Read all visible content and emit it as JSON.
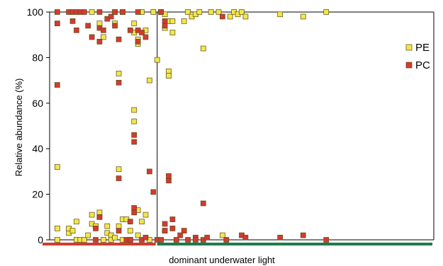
{
  "chart_data": {
    "type": "scatter",
    "title": "",
    "ylabel": "Relative abundance (%)",
    "xlabel": "dominant underwater light",
    "ylim": [
      0,
      100
    ],
    "yticks": [
      0,
      20,
      40,
      60,
      80,
      100
    ],
    "grid": false,
    "legend_position": "right",
    "x_divider": 0.28,
    "light_bands": [
      {
        "range": [
          0.0,
          0.28
        ],
        "color": "#d43a2f"
      },
      {
        "range": [
          0.28,
          1.0
        ],
        "color": "#1f7a4a"
      }
    ],
    "series": [
      {
        "name": "PE",
        "color": "#f2e64a",
        "points": [
          [
            0.02,
            32
          ],
          [
            0.02,
            5
          ],
          [
            0.02,
            0
          ],
          [
            0.05,
            3
          ],
          [
            0.05,
            5
          ],
          [
            0.06,
            4
          ],
          [
            0.07,
            8
          ],
          [
            0.07,
            0
          ],
          [
            0.08,
            0
          ],
          [
            0.09,
            0
          ],
          [
            0.1,
            2
          ],
          [
            0.11,
            7
          ],
          [
            0.11,
            11
          ],
          [
            0.11,
            100
          ],
          [
            0.12,
            6
          ],
          [
            0.13,
            12
          ],
          [
            0.13,
            10
          ],
          [
            0.13,
            95
          ],
          [
            0.14,
            89
          ],
          [
            0.14,
            0
          ],
          [
            0.15,
            6
          ],
          [
            0.15,
            3
          ],
          [
            0.16,
            2
          ],
          [
            0.16,
            0
          ],
          [
            0.17,
            1
          ],
          [
            0.17,
            95
          ],
          [
            0.18,
            31
          ],
          [
            0.18,
            73
          ],
          [
            0.18,
            6
          ],
          [
            0.19,
            9
          ],
          [
            0.19,
            0
          ],
          [
            0.19,
            100
          ],
          [
            0.2,
            9
          ],
          [
            0.21,
            0
          ],
          [
            0.21,
            4
          ],
          [
            0.22,
            52
          ],
          [
            0.22,
            57
          ],
          [
            0.22,
            95
          ],
          [
            0.22,
            91
          ],
          [
            0.23,
            2
          ],
          [
            0.23,
            13
          ],
          [
            0.23,
            86
          ],
          [
            0.23,
            88
          ],
          [
            0.24,
            100
          ],
          [
            0.24,
            8
          ],
          [
            0.25,
            11
          ],
          [
            0.25,
            92
          ],
          [
            0.26,
            0
          ],
          [
            0.26,
            70
          ],
          [
            0.27,
            100
          ],
          [
            0.28,
            79
          ],
          [
            0.29,
            100
          ],
          [
            0.29,
            100
          ],
          [
            0.3,
            99
          ],
          [
            0.3,
            4
          ],
          [
            0.3,
            93
          ],
          [
            0.31,
            74
          ],
          [
            0.31,
            72
          ],
          [
            0.31,
            96
          ],
          [
            0.32,
            91
          ],
          [
            0.32,
            96
          ],
          [
            0.35,
            96
          ],
          [
            0.36,
            100
          ],
          [
            0.37,
            98
          ],
          [
            0.38,
            99
          ],
          [
            0.39,
            100
          ],
          [
            0.4,
            84
          ],
          [
            0.42,
            100
          ],
          [
            0.44,
            100
          ],
          [
            0.45,
            2
          ],
          [
            0.47,
            98
          ],
          [
            0.48,
            100
          ],
          [
            0.49,
            99
          ],
          [
            0.5,
            100
          ],
          [
            0.51,
            98
          ],
          [
            0.6,
            99
          ],
          [
            0.66,
            98
          ],
          [
            0.72,
            100
          ]
        ]
      },
      {
        "name": "PC",
        "color": "#d43a2f",
        "points": [
          [
            0.02,
            100
          ],
          [
            0.02,
            95
          ],
          [
            0.02,
            68
          ],
          [
            0.05,
            100
          ],
          [
            0.06,
            100
          ],
          [
            0.06,
            96
          ],
          [
            0.07,
            100
          ],
          [
            0.07,
            92
          ],
          [
            0.08,
            100
          ],
          [
            0.09,
            100
          ],
          [
            0.1,
            94
          ],
          [
            0.11,
            89
          ],
          [
            0.12,
            5
          ],
          [
            0.12,
            0
          ],
          [
            0.13,
            100
          ],
          [
            0.13,
            93
          ],
          [
            0.13,
            87
          ],
          [
            0.13,
            10
          ],
          [
            0.14,
            92
          ],
          [
            0.15,
            97
          ],
          [
            0.16,
            98
          ],
          [
            0.17,
            100
          ],
          [
            0.17,
            100
          ],
          [
            0.17,
            94
          ],
          [
            0.18,
            88
          ],
          [
            0.18,
            69
          ],
          [
            0.18,
            27
          ],
          [
            0.18,
            4
          ],
          [
            0.19,
            100
          ],
          [
            0.2,
            0
          ],
          [
            0.21,
            92
          ],
          [
            0.21,
            8
          ],
          [
            0.21,
            0
          ],
          [
            0.22,
            46
          ],
          [
            0.22,
            43
          ],
          [
            0.22,
            14
          ],
          [
            0.22,
            12
          ],
          [
            0.23,
            100
          ],
          [
            0.23,
            92
          ],
          [
            0.23,
            87
          ],
          [
            0.24,
            91
          ],
          [
            0.24,
            0
          ],
          [
            0.25,
            89
          ],
          [
            0.25,
            1
          ],
          [
            0.26,
            30
          ],
          [
            0.27,
            21
          ],
          [
            0.28,
            0
          ],
          [
            0.29,
            0
          ],
          [
            0.29,
            100
          ],
          [
            0.3,
            96
          ],
          [
            0.3,
            94
          ],
          [
            0.3,
            7
          ],
          [
            0.3,
            4
          ],
          [
            0.31,
            26
          ],
          [
            0.31,
            28
          ],
          [
            0.32,
            5
          ],
          [
            0.32,
            9
          ],
          [
            0.33,
            0
          ],
          [
            0.34,
            2
          ],
          [
            0.35,
            4
          ],
          [
            0.36,
            0
          ],
          [
            0.38,
            1
          ],
          [
            0.38,
            0
          ],
          [
            0.4,
            16
          ],
          [
            0.4,
            0
          ],
          [
            0.41,
            1
          ],
          [
            0.45,
            98
          ],
          [
            0.46,
            0
          ],
          [
            0.5,
            2
          ],
          [
            0.51,
            1
          ],
          [
            0.6,
            1
          ],
          [
            0.66,
            2
          ],
          [
            0.72,
            0
          ]
        ]
      }
    ]
  }
}
